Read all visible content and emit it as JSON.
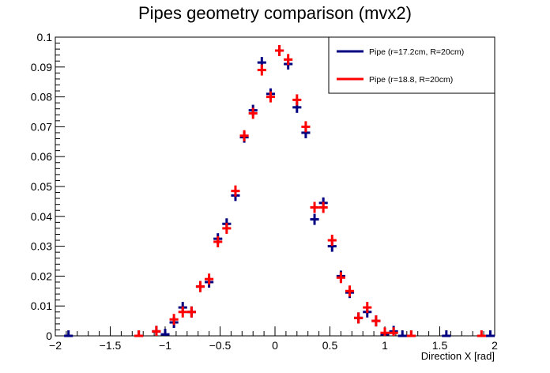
{
  "chart_data": {
    "type": "scatter",
    "title": "Pipes geometry comparison (mvx2)",
    "xlabel": "Direction X [rad]",
    "ylabel": "",
    "xlim": [
      -2,
      2
    ],
    "ylim": [
      0,
      0.1
    ],
    "x_ticks": [
      "−2",
      "−1.5",
      "−1",
      "−0.5",
      "0",
      "0.5",
      "1",
      "1.5",
      "2"
    ],
    "y_ticks": [
      "0",
      "0.01",
      "0.02",
      "0.03",
      "0.04",
      "0.05",
      "0.06",
      "0.07",
      "0.08",
      "0.09",
      "0.1"
    ],
    "x_tick_values": [
      -2,
      -1.5,
      -1,
      -0.5,
      0,
      0.5,
      1,
      1.5,
      2
    ],
    "y_tick_values": [
      0,
      0.01,
      0.02,
      0.03,
      0.04,
      0.05,
      0.06,
      0.07,
      0.08,
      0.09,
      0.1
    ],
    "legend_position": "top-right",
    "grid": false,
    "bin_width": 0.08,
    "series": [
      {
        "name": "Pipe (r=17.2cm, R=20cm)",
        "color": "#000080",
        "points": [
          [
            -1.88,
            0.0
          ],
          [
            -1.24,
            0.0
          ],
          [
            -1.08,
            0.0015
          ],
          [
            -1.0,
            0.0005
          ],
          [
            -0.92,
            0.0045
          ],
          [
            -0.84,
            0.0095
          ],
          [
            -0.76,
            0.008
          ],
          [
            -0.68,
            0.0165
          ],
          [
            -0.6,
            0.018
          ],
          [
            -0.52,
            0.0325
          ],
          [
            -0.44,
            0.0375
          ],
          [
            -0.36,
            0.047
          ],
          [
            -0.28,
            0.0665
          ],
          [
            -0.2,
            0.0755
          ],
          [
            -0.12,
            0.0915
          ],
          [
            -0.04,
            0.081
          ],
          [
            0.04,
            0.0955
          ],
          [
            0.12,
            0.091
          ],
          [
            0.2,
            0.0765
          ],
          [
            0.28,
            0.068
          ],
          [
            0.36,
            0.039
          ],
          [
            0.44,
            0.0445
          ],
          [
            0.52,
            0.03
          ],
          [
            0.6,
            0.02
          ],
          [
            0.68,
            0.0145
          ],
          [
            0.76,
            0.006
          ],
          [
            0.84,
            0.008
          ],
          [
            0.92,
            0.005
          ],
          [
            1.0,
            0.0005
          ],
          [
            1.08,
            0.0015
          ],
          [
            1.16,
            0.0
          ],
          [
            1.24,
            0.0
          ],
          [
            1.56,
            0.0
          ],
          [
            1.96,
            0.0
          ]
        ]
      },
      {
        "name": "Pipe (r=18.8, R=20cm)",
        "color": "#ff0000",
        "points": [
          [
            -1.24,
            0.0
          ],
          [
            -1.08,
            0.0015
          ],
          [
            -0.92,
            0.0055
          ],
          [
            -0.84,
            0.008
          ],
          [
            -0.76,
            0.008
          ],
          [
            -0.68,
            0.0165
          ],
          [
            -0.6,
            0.019
          ],
          [
            -0.52,
            0.0315
          ],
          [
            -0.44,
            0.036
          ],
          [
            -0.36,
            0.0485
          ],
          [
            -0.28,
            0.067
          ],
          [
            -0.2,
            0.0745
          ],
          [
            -0.12,
            0.089
          ],
          [
            -0.04,
            0.08
          ],
          [
            0.04,
            0.0955
          ],
          [
            0.12,
            0.0925
          ],
          [
            0.2,
            0.079
          ],
          [
            0.28,
            0.07
          ],
          [
            0.36,
            0.043
          ],
          [
            0.44,
            0.043
          ],
          [
            0.52,
            0.032
          ],
          [
            0.6,
            0.0195
          ],
          [
            0.68,
            0.015
          ],
          [
            0.76,
            0.006
          ],
          [
            0.84,
            0.0095
          ],
          [
            0.92,
            0.005
          ],
          [
            1.0,
            0.001
          ],
          [
            1.08,
            0.001
          ],
          [
            1.24,
            0.0
          ],
          [
            1.88,
            0.0
          ]
        ]
      }
    ]
  }
}
